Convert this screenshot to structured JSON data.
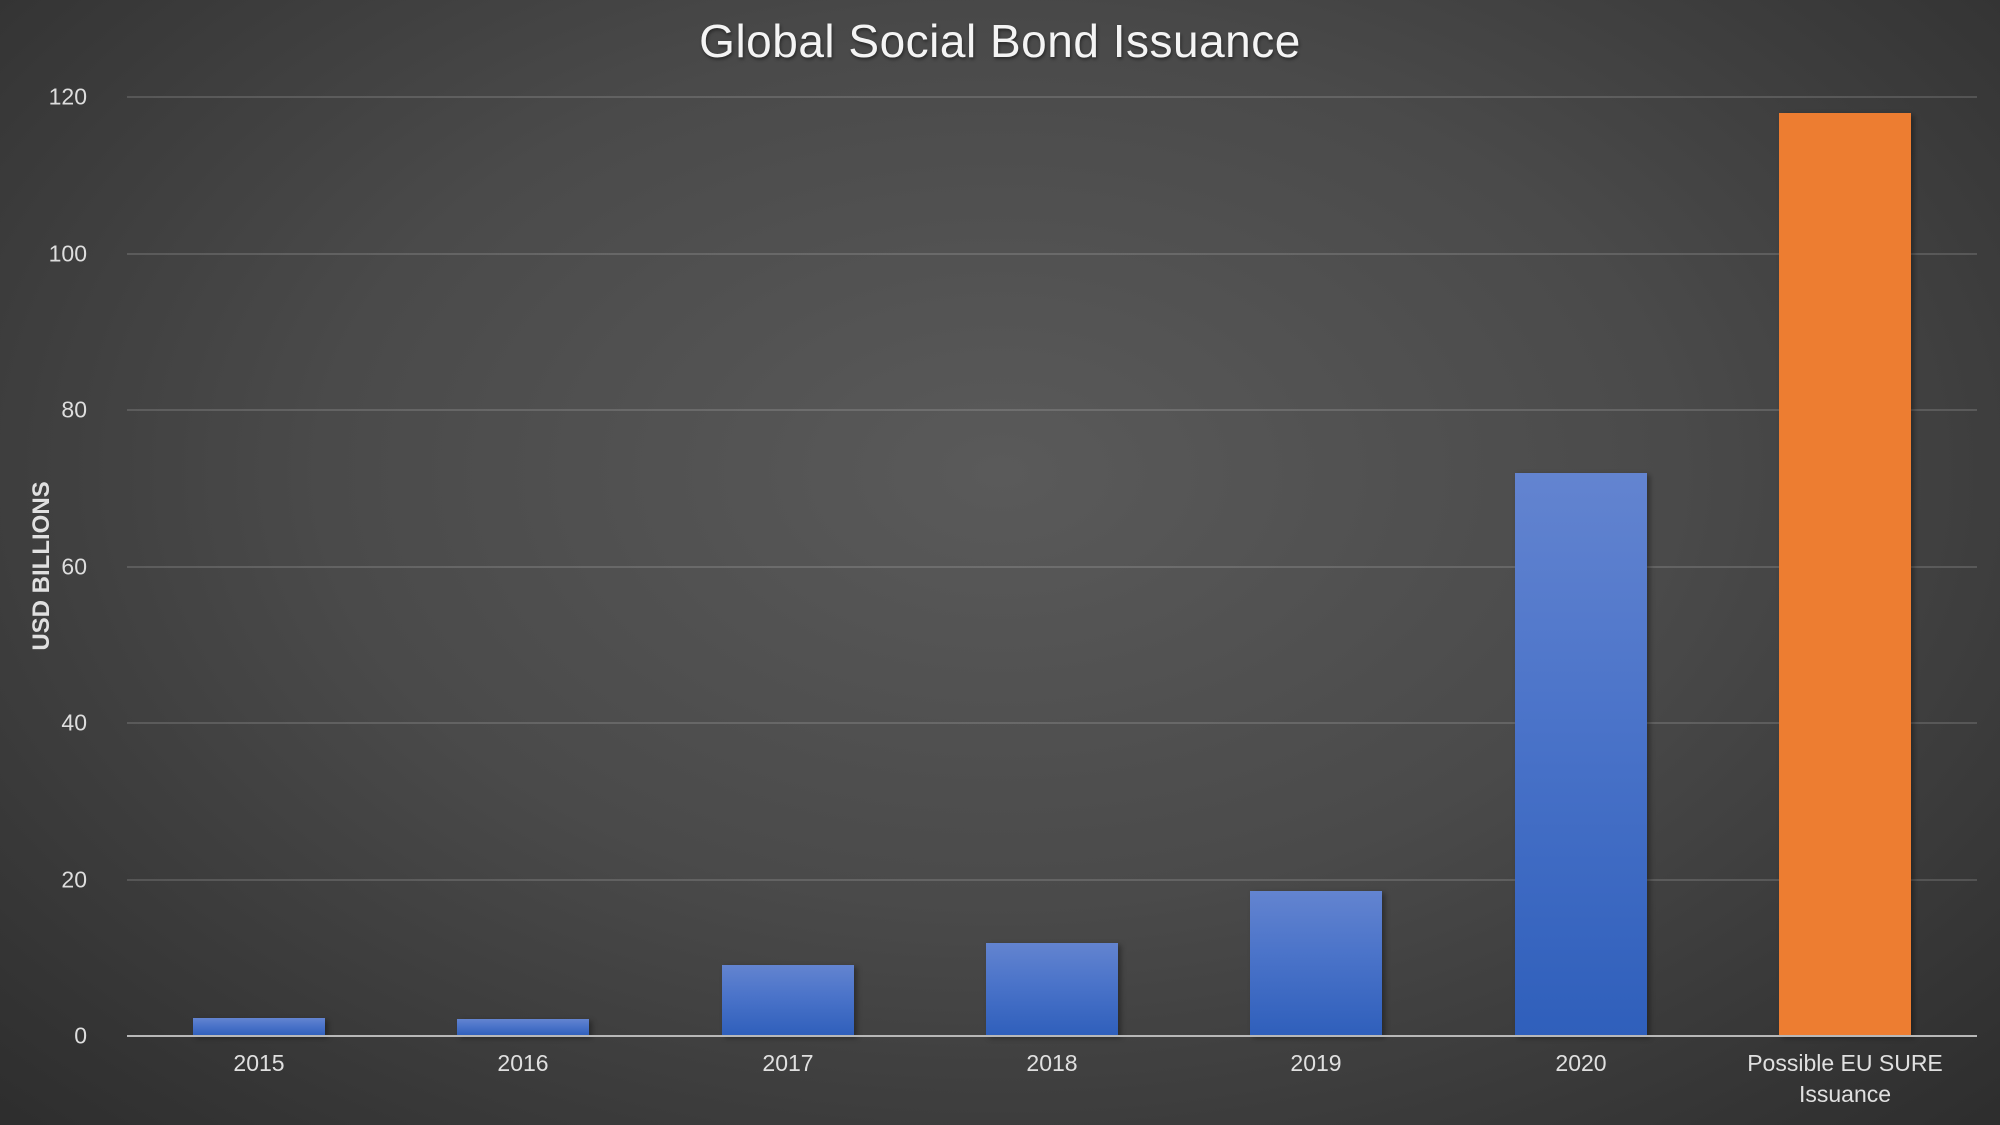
{
  "chart_data": {
    "type": "bar",
    "title": "Global Social Bond Issuance",
    "xlabel": "",
    "ylabel": "USD BILLIONS",
    "categories": [
      "2015",
      "2016",
      "2017",
      "2018",
      "2019",
      "2020",
      "Possible EU SURE Issuance"
    ],
    "values": [
      2.3,
      2.2,
      9.1,
      11.9,
      18.5,
      72,
      118
    ],
    "bar_colors": [
      "#4a73c9",
      "#4a73c9",
      "#4a73c9",
      "#4a73c9",
      "#4a73c9",
      "#4a73c9",
      "#ed7d31"
    ],
    "ylim": [
      0,
      120
    ],
    "yticks": [
      0,
      20,
      40,
      60,
      80,
      100,
      120
    ],
    "ytick_labels": [
      "0",
      "20",
      "40",
      "60",
      "80",
      "100",
      "120"
    ],
    "grid": true,
    "legend": null
  },
  "labels": {
    "title": "Global Social Bond Issuance",
    "ylabel": "USD BILLIONS",
    "xticks": [
      "2015",
      "2016",
      "2017",
      "2018",
      "2019",
      "2020",
      "Possible EU SURE Issuance"
    ],
    "yticks": [
      "0",
      "20",
      "40",
      "60",
      "80",
      "100",
      "120"
    ]
  }
}
